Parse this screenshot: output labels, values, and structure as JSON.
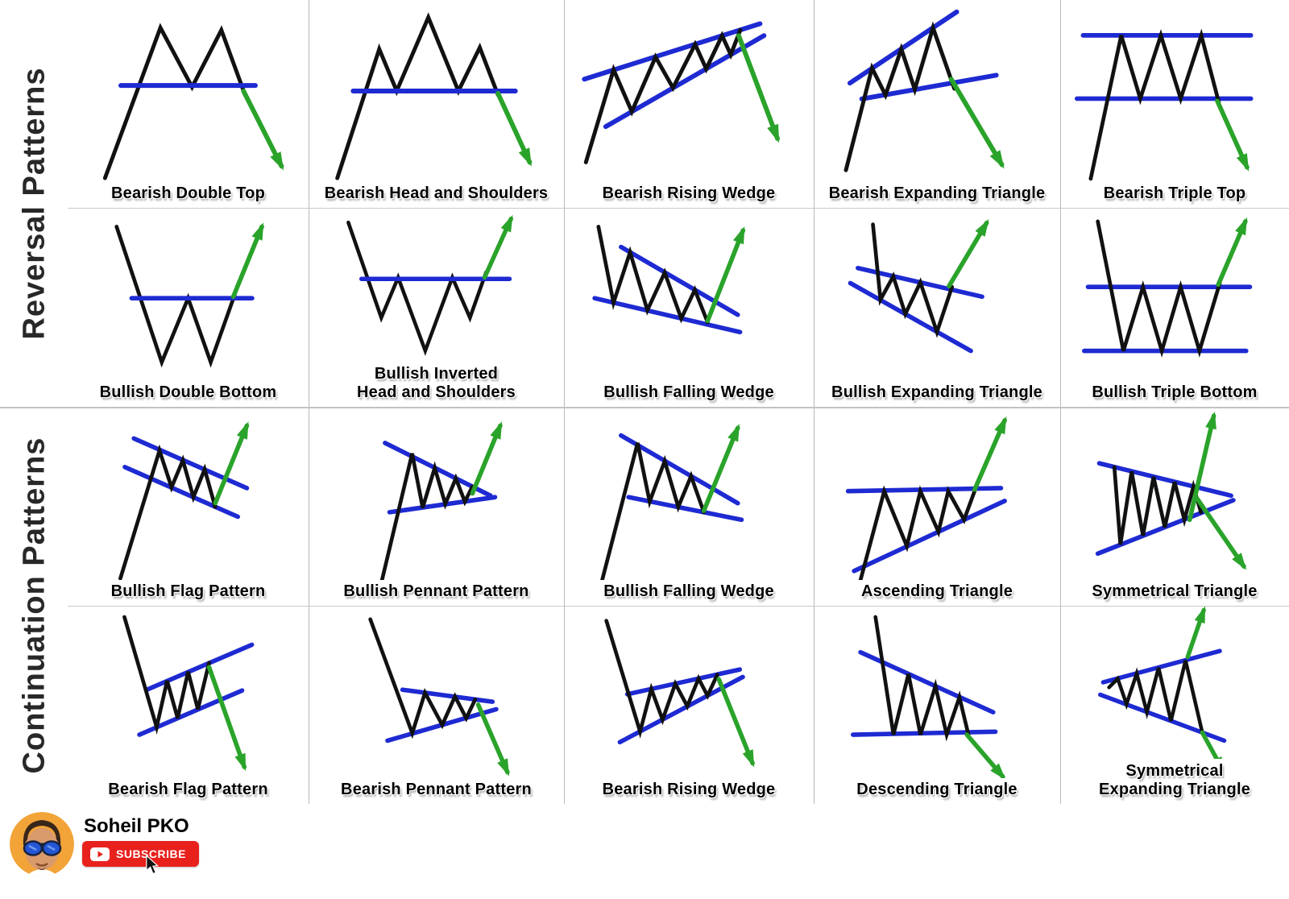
{
  "sidebar": {
    "reversal_label": "Reversal Patterns",
    "continuation_label": "Continuation Patterns"
  },
  "cells": [
    {
      "name": "bearish-double-top",
      "label_lines": [
        "Bearish Double Top"
      ]
    },
    {
      "name": "bearish-head-and-shoulders",
      "label_lines": [
        "Bearish Head and Shoulders"
      ]
    },
    {
      "name": "bearish-rising-wedge",
      "label_lines": [
        "Bearish Rising Wedge"
      ]
    },
    {
      "name": "bearish-expanding-triangle",
      "label_lines": [
        "Bearish Expanding Triangle"
      ]
    },
    {
      "name": "bearish-triple-top",
      "label_lines": [
        "Bearish Triple Top"
      ]
    },
    {
      "name": "bullish-double-bottom",
      "label_lines": [
        "Bullish Double Bottom"
      ]
    },
    {
      "name": "bullish-inverted-head-and-shoulders",
      "label_lines": [
        "Bullish Inverted",
        "Head and Shoulders"
      ]
    },
    {
      "name": "bullish-falling-wedge",
      "label_lines": [
        "Bullish Falling Wedge"
      ]
    },
    {
      "name": "bullish-expanding-triangle",
      "label_lines": [
        "Bullish Expanding Triangle"
      ]
    },
    {
      "name": "bullish-triple-bottom",
      "label_lines": [
        "Bullish Triple Bottom"
      ]
    },
    {
      "name": "bullish-flag-pattern",
      "label_lines": [
        "Bullish Flag Pattern"
      ]
    },
    {
      "name": "bullish-pennant-pattern",
      "label_lines": [
        "Bullish Pennant Pattern"
      ]
    },
    {
      "name": "bullish-falling-wedge-continuation",
      "label_lines": [
        "Bullish Falling Wedge"
      ]
    },
    {
      "name": "ascending-triangle",
      "label_lines": [
        "Ascending Triangle"
      ]
    },
    {
      "name": "symmetrical-triangle",
      "label_lines": [
        "Symmetrical Triangle"
      ]
    },
    {
      "name": "bearish-flag-pattern",
      "label_lines": [
        "Bearish Flag Pattern"
      ]
    },
    {
      "name": "bearish-pennant-pattern",
      "label_lines": [
        "Bearish Pennant Pattern"
      ]
    },
    {
      "name": "bearish-rising-wedge-continuation",
      "label_lines": [
        "Bearish Rising Wedge"
      ]
    },
    {
      "name": "descending-triangle",
      "label_lines": [
        "Descending Triangle"
      ]
    },
    {
      "name": "symmetrical-expanding-triangle",
      "label_lines": [
        "Symmetrical",
        "Expanding Triangle"
      ]
    }
  ],
  "footer": {
    "channel_name": "Soheil PKO",
    "subscribe_label": "SUBSCRIBE"
  },
  "colors": {
    "pattern_line": "#111111",
    "trend_line": "#1e2ad2",
    "breakout_arrow": "#2aa32a",
    "grid_line": "#b9b9b9",
    "subscribe_red": "#e8211d",
    "avatar_background": "#f2a438",
    "sidebar_text": "#282828"
  }
}
